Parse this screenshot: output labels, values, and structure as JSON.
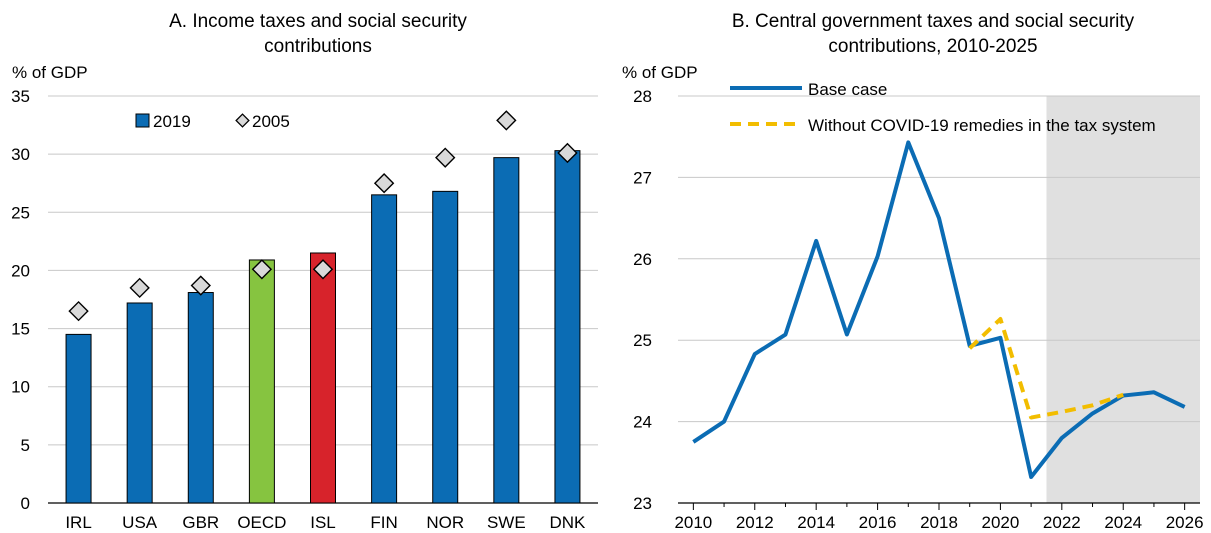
{
  "chart_data": [
    {
      "type": "bar",
      "title": "A. Income taxes and social security contributions",
      "title_lines": [
        "A. Income taxes and social security",
        "contributions"
      ],
      "ylabel": "% of GDP",
      "ylim": [
        0,
        35
      ],
      "yticks": [
        0,
        5,
        10,
        15,
        20,
        25,
        30,
        35
      ],
      "grid": true,
      "legend": "top-left",
      "categories": [
        "IRL",
        "USA",
        "GBR",
        "OECD",
        "ISL",
        "FIN",
        "NOR",
        "SWE",
        "DNK"
      ],
      "series": [
        {
          "name": "2019",
          "type": "bar",
          "values": [
            14.5,
            17.2,
            18.1,
            20.9,
            21.5,
            26.5,
            26.8,
            29.7,
            30.3
          ],
          "color": "#0b6cb4",
          "highlight_colors": {
            "OECD": "#86c440",
            "ISL": "#d7232b"
          }
        },
        {
          "name": "2005",
          "type": "marker",
          "values": [
            16.5,
            18.5,
            18.7,
            20.1,
            20.1,
            27.5,
            29.7,
            32.9,
            30.1
          ],
          "color": "#d9d9d9"
        }
      ]
    },
    {
      "type": "line",
      "title": "B. Central government taxes and social security contributions, 2010-2025",
      "title_lines": [
        "B. Central government taxes and social security",
        "contributions, 2010-2025"
      ],
      "ylabel": "% of GDP",
      "ylim": [
        23,
        28
      ],
      "yticks": [
        23,
        24,
        25,
        26,
        27,
        28
      ],
      "xlim": [
        2010,
        2026
      ],
      "xticks": [
        2010,
        2012,
        2014,
        2016,
        2018,
        2020,
        2022,
        2024,
        2026
      ],
      "grid": true,
      "legend": "top",
      "shaded_region": {
        "from": 2021.5,
        "to": 2026.5,
        "color": "#e0e0e0"
      },
      "series": [
        {
          "name": "Base case",
          "color": "#0b6cb4",
          "style": "solid",
          "x": [
            2010,
            2011,
            2012,
            2013,
            2014,
            2015,
            2016,
            2017,
            2018,
            2019,
            2020,
            2021,
            2022,
            2023,
            2024,
            2025,
            2026
          ],
          "y": [
            23.75,
            24.0,
            24.83,
            25.07,
            26.22,
            25.07,
            26.03,
            27.43,
            26.5,
            24.93,
            25.03,
            23.32,
            23.8,
            24.1,
            24.32,
            24.36,
            24.18
          ]
        },
        {
          "name": "Without COVID-19 remedies in the tax system",
          "color": "#f2bd00",
          "style": "dashed",
          "x": [
            2019,
            2020,
            2021,
            2022,
            2023,
            2024
          ],
          "y": [
            24.9,
            25.26,
            24.05,
            24.12,
            24.2,
            24.33
          ]
        }
      ]
    }
  ]
}
